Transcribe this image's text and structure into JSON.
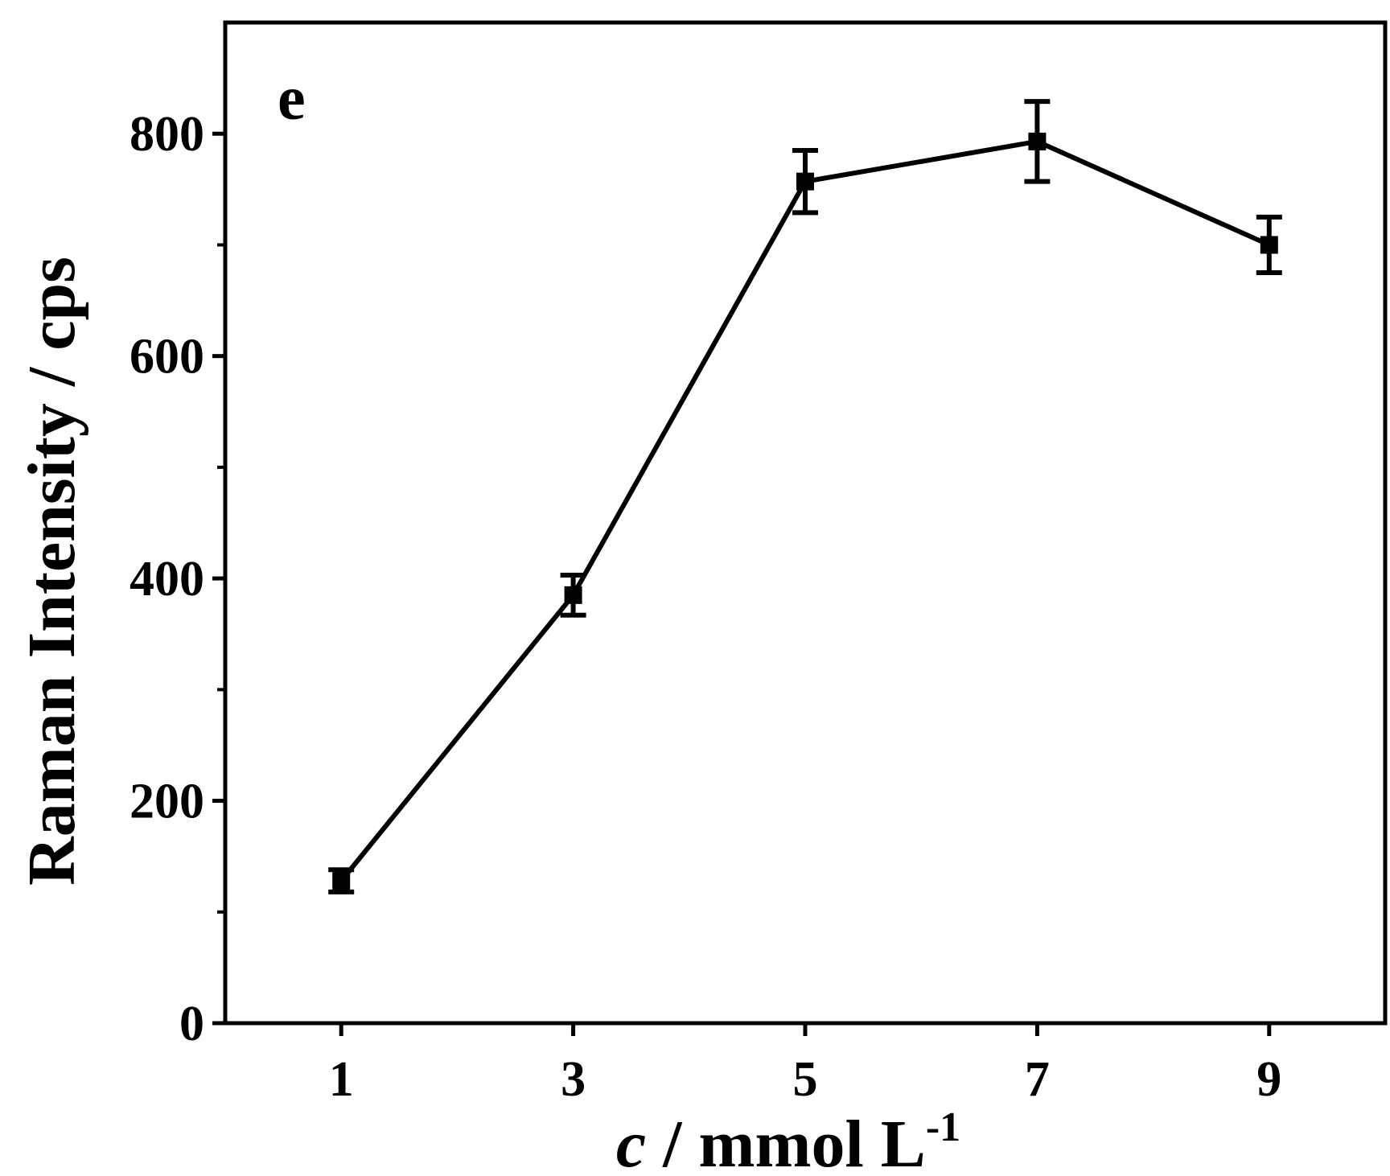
{
  "chart_data": {
    "type": "line",
    "panel_label": "e",
    "xlabel": {
      "italic_part": "c",
      "rest": " / mmol L",
      "superscript": "-1"
    },
    "ylabel": "Raman Intensity / cps",
    "xlim": [
      0,
      10
    ],
    "ylim": [
      0,
      900
    ],
    "xticks": [
      1,
      3,
      5,
      7,
      9
    ],
    "xtick_labels": [
      "1",
      "3",
      "5",
      "7",
      "9"
    ],
    "yticks_major": [
      0,
      200,
      400,
      600,
      800
    ],
    "ytick_labels": [
      "0",
      "200",
      "400",
      "600",
      "800"
    ],
    "yticks_minor": [
      100,
      300,
      500,
      700
    ],
    "grid": false,
    "series": [
      {
        "x": [
          1,
          3,
          5,
          7,
          9
        ],
        "y": [
          128,
          385,
          757,
          793,
          700
        ],
        "error": [
          10,
          18,
          28,
          36,
          25
        ],
        "marker": "square",
        "color": "#000000"
      }
    ]
  }
}
